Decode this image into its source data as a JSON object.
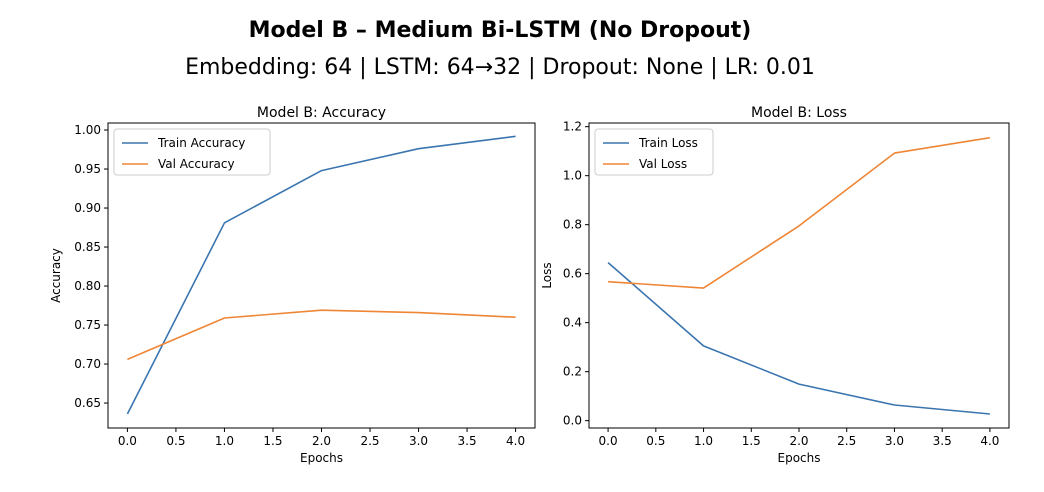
{
  "figure": {
    "title": "Model B – Medium Bi-LSTM (No Dropout)",
    "subtitle": "Embedding: 64 | LSTM: 64→32 | Dropout: None | LR: 0.01"
  },
  "chart_data": [
    {
      "type": "line",
      "title": "Model B: Accuracy",
      "xlabel": "Epochs",
      "ylabel": "Accuracy",
      "x": [
        0,
        1,
        2,
        3,
        4
      ],
      "xlim": [
        -0.2,
        4.2
      ],
      "ylim": [
        0.618,
        1.009
      ],
      "xticks": [
        0.0,
        0.5,
        1.0,
        1.5,
        2.0,
        2.5,
        3.0,
        3.5,
        4.0
      ],
      "yticks": [
        0.65,
        0.7,
        0.75,
        0.8,
        0.85,
        0.9,
        0.95,
        1.0
      ],
      "xtick_labels": [
        "0.0",
        "0.5",
        "1.0",
        "1.5",
        "2.0",
        "2.5",
        "3.0",
        "3.5",
        "4.0"
      ],
      "ytick_labels": [
        "0.65",
        "0.70",
        "0.75",
        "0.80",
        "0.85",
        "0.90",
        "0.95",
        "1.00"
      ],
      "legend_position": "top-left",
      "grid": false,
      "series": [
        {
          "name": "Train Accuracy",
          "color": "#3b75af",
          "values": [
            0.636,
            0.881,
            0.948,
            0.976,
            0.992
          ]
        },
        {
          "name": "Val Accuracy",
          "color": "#ef8636",
          "values": [
            0.706,
            0.759,
            0.769,
            0.766,
            0.76
          ]
        }
      ]
    },
    {
      "type": "line",
      "title": "Model B: Loss",
      "xlabel": "Epochs",
      "ylabel": "Loss",
      "x": [
        0,
        1,
        2,
        3,
        4
      ],
      "xlim": [
        -0.2,
        4.2
      ],
      "ylim": [
        -0.03,
        1.215
      ],
      "xticks": [
        0.0,
        0.5,
        1.0,
        1.5,
        2.0,
        2.5,
        3.0,
        3.5,
        4.0
      ],
      "yticks": [
        0.0,
        0.2,
        0.4,
        0.6,
        0.8,
        1.0,
        1.2
      ],
      "xtick_labels": [
        "0.0",
        "0.5",
        "1.0",
        "1.5",
        "2.0",
        "2.5",
        "3.0",
        "3.5",
        "4.0"
      ],
      "ytick_labels": [
        "0.0",
        "0.2",
        "0.4",
        "0.6",
        "0.8",
        "1.0",
        "1.2"
      ],
      "legend_position": "top-left",
      "grid": false,
      "series": [
        {
          "name": "Train Loss",
          "color": "#3b75af",
          "values": [
            0.645,
            0.305,
            0.149,
            0.064,
            0.027
          ]
        },
        {
          "name": "Val Loss",
          "color": "#ef8636",
          "values": [
            0.567,
            0.541,
            0.795,
            1.092,
            1.155
          ]
        }
      ]
    }
  ]
}
